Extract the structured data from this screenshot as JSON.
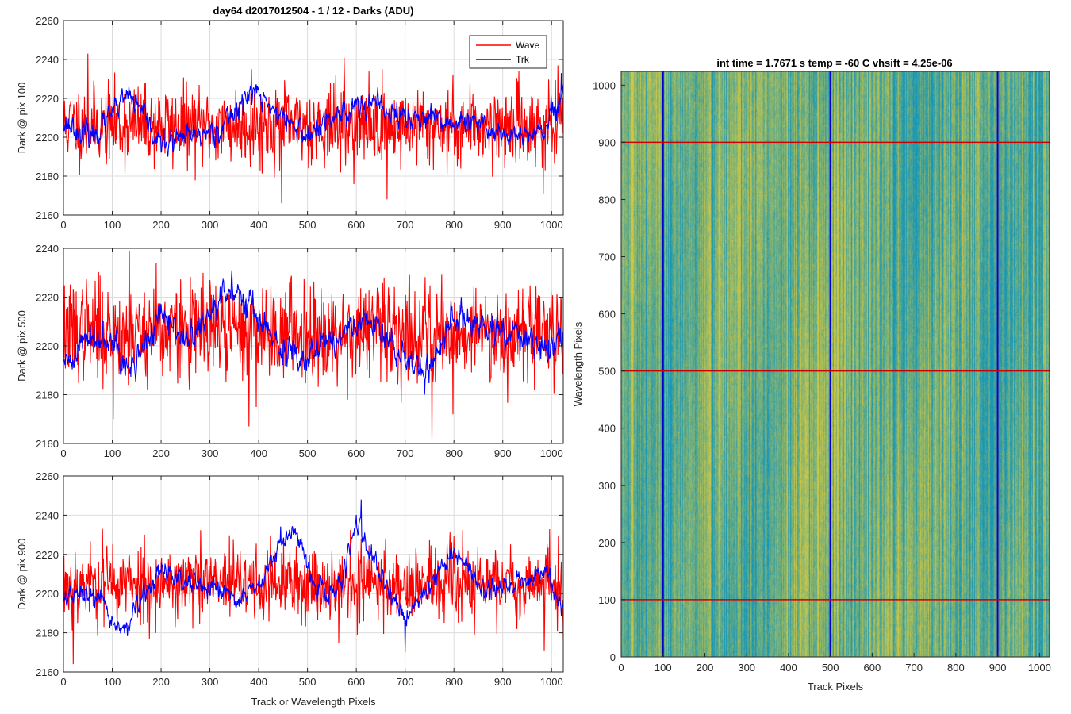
{
  "figure": {
    "left_title": "day64 d2017012504 - 1 / 12 - Darks (ADU)",
    "right_title": "int time = 1.7671 s    temp = -60 C    vhsift = 4.25e-06"
  },
  "chart_data": [
    {
      "type": "line",
      "ylabel": "Dark @ pix 100",
      "xlabel": "",
      "xlim": [
        0,
        1024
      ],
      "ylim": [
        2160,
        2260
      ],
      "xticks": [
        0,
        100,
        200,
        300,
        400,
        500,
        600,
        700,
        800,
        900,
        1000
      ],
      "yticks": [
        2160,
        2180,
        2200,
        2220,
        2240,
        2260
      ],
      "grid": true,
      "legend": {
        "placement": "top-right",
        "entries": [
          "Wave",
          "Trk"
        ]
      },
      "series": [
        {
          "name": "Wave",
          "color": "#ff0000",
          "x_range": [
            1,
            1024
          ],
          "mean": 2206,
          "noise": 10,
          "seed": 11,
          "spikes": [
            [
              50,
              2243
            ],
            [
              575,
              2241
            ],
            [
              447,
              2166
            ],
            [
              663,
              2168
            ],
            [
              983,
              2171
            ]
          ]
        },
        {
          "name": "Trk",
          "color": "#0000ff",
          "x_range": [
            1,
            1024
          ],
          "mean": 2207,
          "noise": 6,
          "seed": 23,
          "wander": [
            [
              0,
              2208
            ],
            [
              60,
              2200
            ],
            [
              135,
              2222
            ],
            [
              200,
              2196
            ],
            [
              260,
              2200
            ],
            [
              320,
              2204
            ],
            [
              365,
              2218
            ],
            [
              390,
              2224
            ],
            [
              440,
              2212
            ],
            [
              500,
              2200
            ],
            [
              560,
              2212
            ],
            [
              620,
              2218
            ],
            [
              700,
              2210
            ],
            [
              760,
              2208
            ],
            [
              850,
              2206
            ],
            [
              930,
              2200
            ],
            [
              980,
              2202
            ],
            [
              1024,
              2220
            ]
          ],
          "spikes": [
            [
              385,
              2235
            ],
            [
              1020,
              2233
            ]
          ]
        }
      ]
    },
    {
      "type": "line",
      "ylabel": "Dark @ pix 500",
      "xlabel": "",
      "xlim": [
        0,
        1024
      ],
      "ylim": [
        2160,
        2240
      ],
      "xticks": [
        0,
        100,
        200,
        300,
        400,
        500,
        600,
        700,
        800,
        900,
        1000
      ],
      "yticks": [
        2160,
        2180,
        2200,
        2220,
        2240
      ],
      "grid": true,
      "series": [
        {
          "name": "Wave",
          "color": "#ff0000",
          "x_range": [
            1,
            1024
          ],
          "mean": 2206,
          "noise": 10,
          "seed": 37,
          "spikes": [
            [
              135,
              2239
            ],
            [
              190,
              2234
            ],
            [
              102,
              2170
            ],
            [
              380,
              2167
            ],
            [
              755,
              2162
            ],
            [
              798,
              2172
            ]
          ]
        },
        {
          "name": "Trk",
          "color": "#0000ff",
          "x_range": [
            1,
            1024
          ],
          "mean": 2202,
          "noise": 6,
          "seed": 41,
          "wander": [
            [
              0,
              2190
            ],
            [
              40,
              2202
            ],
            [
              100,
              2206
            ],
            [
              130,
              2188
            ],
            [
              200,
              2212
            ],
            [
              260,
              2202
            ],
            [
              320,
              2218
            ],
            [
              360,
              2224
            ],
            [
              400,
              2212
            ],
            [
              440,
              2198
            ],
            [
              480,
              2196
            ],
            [
              520,
              2200
            ],
            [
              570,
              2204
            ],
            [
              620,
              2210
            ],
            [
              700,
              2196
            ],
            [
              740,
              2188
            ],
            [
              800,
              2212
            ],
            [
              870,
              2206
            ],
            [
              930,
              2204
            ],
            [
              990,
              2198
            ],
            [
              1024,
              2206
            ]
          ],
          "spikes": [
            [
              345,
              2231
            ],
            [
              740,
              2180
            ]
          ]
        }
      ]
    },
    {
      "type": "line",
      "ylabel": "Dark @ pix 900",
      "xlabel": "Track or Wavelength Pixels",
      "xlim": [
        0,
        1024
      ],
      "ylim": [
        2160,
        2260
      ],
      "xticks": [
        0,
        100,
        200,
        300,
        400,
        500,
        600,
        700,
        800,
        900,
        1000
      ],
      "yticks": [
        2160,
        2180,
        2200,
        2220,
        2240,
        2260
      ],
      "grid": true,
      "series": [
        {
          "name": "Wave",
          "color": "#ff0000",
          "x_range": [
            1,
            1024
          ],
          "mean": 2205,
          "noise": 10,
          "seed": 53,
          "spikes": [
            [
              80,
              2233
            ],
            [
              20,
              2164
            ],
            [
              985,
              2171
            ]
          ]
        },
        {
          "name": "Trk",
          "color": "#0000ff",
          "x_range": [
            1,
            1024
          ],
          "mean": 2203,
          "noise": 5,
          "seed": 67,
          "wander": [
            [
              0,
              2198
            ],
            [
              60,
              2200
            ],
            [
              120,
              2180
            ],
            [
              200,
              2212
            ],
            [
              280,
              2202
            ],
            [
              360,
              2198
            ],
            [
              410,
              2204
            ],
            [
              440,
              2226
            ],
            [
              480,
              2230
            ],
            [
              520,
              2202
            ],
            [
              560,
              2200
            ],
            [
              600,
              2236
            ],
            [
              640,
              2212
            ],
            [
              700,
              2188
            ],
            [
              760,
              2208
            ],
            [
              800,
              2222
            ],
            [
              860,
              2202
            ],
            [
              930,
              2205
            ],
            [
              990,
              2212
            ],
            [
              1024,
              2190
            ]
          ],
          "spikes": [
            [
              610,
              2248
            ],
            [
              700,
              2170
            ]
          ]
        }
      ]
    },
    {
      "type": "heatmap",
      "xlabel": "Track Pixels",
      "ylabel": "Wavelength Pixels",
      "xlim": [
        0,
        1024
      ],
      "ylim": [
        0,
        1024
      ],
      "xticks": [
        0,
        100,
        200,
        300,
        400,
        500,
        600,
        700,
        800,
        900,
        1000
      ],
      "yticks": [
        0,
        100,
        200,
        300,
        400,
        500,
        600,
        700,
        800,
        900,
        1000
      ],
      "colormap": "parula",
      "grid": false,
      "vertical_lines": {
        "color": "#0000cc",
        "x": [
          100,
          500,
          900
        ]
      },
      "horizontal_lines": {
        "color": "#cc0000",
        "y": [
          100,
          500,
          900
        ]
      }
    }
  ]
}
